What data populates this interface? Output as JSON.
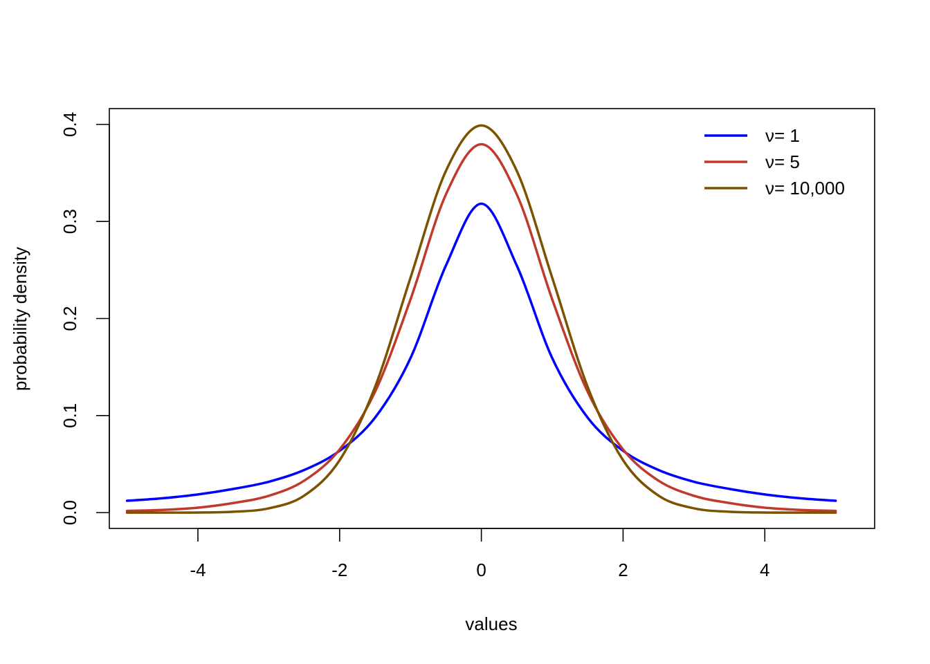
{
  "chart_data": {
    "type": "line",
    "xlabel": "values",
    "ylabel": "probability density",
    "xlim": [
      -5.25,
      5.55
    ],
    "ylim": [
      -0.0163,
      0.4163
    ],
    "x_ticks": [
      -4,
      -2,
      0,
      2,
      4
    ],
    "x_tick_labels": [
      "-4",
      "-2",
      "0",
      "2",
      "4"
    ],
    "y_ticks": [
      0.0,
      0.1,
      0.2,
      0.3,
      0.4
    ],
    "y_tick_labels": [
      "0.0",
      "0.1",
      "0.2",
      "0.3",
      "0.4"
    ],
    "grid": false,
    "legend_position": "top-right",
    "x": [
      -5,
      -4.5,
      -4,
      -3.5,
      -3,
      -2.5,
      -2,
      -1.5,
      -1,
      -0.5,
      0,
      0.5,
      1,
      1.5,
      2,
      2.5,
      3,
      3.5,
      4,
      4.5,
      5
    ],
    "series": [
      {
        "name": "ν= 1",
        "color": "#0000FF",
        "values": [
          0.0122,
          0.0148,
          0.0187,
          0.0244,
          0.0318,
          0.0439,
          0.0637,
          0.0979,
          0.1592,
          0.2546,
          0.3183,
          0.2546,
          0.1592,
          0.0979,
          0.0637,
          0.0439,
          0.0318,
          0.0244,
          0.0187,
          0.0148,
          0.0122
        ]
      },
      {
        "name": "ν= 5",
        "color": "#C0392B",
        "values": [
          0.0018,
          0.0028,
          0.0051,
          0.0099,
          0.0173,
          0.0329,
          0.0651,
          0.1245,
          0.2197,
          0.3279,
          0.3796,
          0.3279,
          0.2197,
          0.1245,
          0.0651,
          0.0329,
          0.0173,
          0.0099,
          0.0051,
          0.0028,
          0.0018
        ]
      },
      {
        "name": "ν= 10,000",
        "color": "#7B5200",
        "values": [
          0.0,
          0.0,
          0.0001,
          0.0009,
          0.0044,
          0.0175,
          0.054,
          0.1295,
          0.242,
          0.3521,
          0.3989,
          0.3521,
          0.242,
          0.1295,
          0.054,
          0.0175,
          0.0044,
          0.0009,
          0.0001,
          0.0,
          0.0
        ]
      }
    ]
  }
}
